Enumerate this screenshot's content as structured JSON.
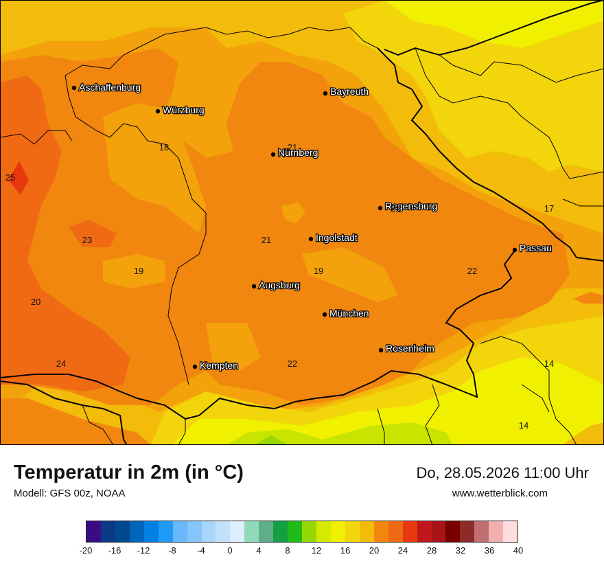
{
  "map": {
    "cities": [
      {
        "name": "Aschaffenburg"
      },
      {
        "name": "Würzburg"
      },
      {
        "name": "Bayreuth"
      },
      {
        "name": "Nürnberg"
      },
      {
        "name": "Regensburg"
      },
      {
        "name": "Ingolstadt"
      },
      {
        "name": "Passau"
      },
      {
        "name": "Augsburg"
      },
      {
        "name": "München"
      },
      {
        "name": "Rosenheim"
      },
      {
        "name": "Kempten"
      }
    ],
    "values": [
      "25",
      "18",
      "21",
      "23",
      "21",
      "21",
      "17",
      "19",
      "19",
      "22",
      "20",
      "24",
      "22",
      "14",
      "14"
    ],
    "colors": {
      "deep_orange": "#f06a14",
      "orange": "#f2870f",
      "light_orange": "#f3a20b",
      "yellow_orange": "#f3bb0a",
      "yellow": "#f2d50b",
      "bright_yellow": "#f0f000",
      "lime": "#c8e400"
    }
  },
  "footer": {
    "title": "Temperatur in 2m (in °C)",
    "model": "Modell: GFS 00z, NOAA",
    "datetime": "Do, 28.05.2026 11:00 Uhr",
    "website": "www.wetterblick.com"
  },
  "scale": {
    "labels": [
      "-20",
      "-16",
      "-12",
      "-8",
      "-4",
      "0",
      "4",
      "8",
      "12",
      "16",
      "20",
      "24",
      "28",
      "32",
      "36",
      "40"
    ],
    "colors": [
      "#3a0c83",
      "#0a3a85",
      "#00488f",
      "#0066bb",
      "#0080e0",
      "#1f9bf5",
      "#6ab8fb",
      "#86c6fb",
      "#a8d7fb",
      "#c2e2fb",
      "#deedfc",
      "#92d9b9",
      "#5eae8a",
      "#12a042",
      "#1fbb18",
      "#95d800",
      "#d4ea00",
      "#f0f000",
      "#f2d50b",
      "#f3bb0a",
      "#f2870f",
      "#f06a14",
      "#e8380f",
      "#c0181a",
      "#a81418",
      "#7a0000",
      "#8e2a2a",
      "#c07070",
      "#f0b0b0",
      "#fddddd"
    ]
  }
}
